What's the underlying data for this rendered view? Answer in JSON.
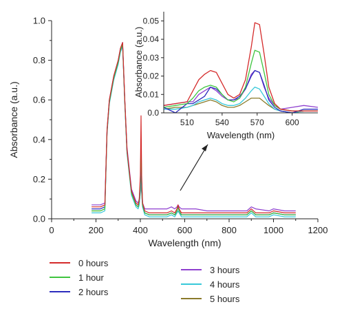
{
  "chart_data": [
    {
      "type": "line",
      "id": "main",
      "xlabel": "Wavelength (nm)",
      "ylabel": "Absorbance (a.u.)",
      "xlim": [
        0,
        1200
      ],
      "ylim": [
        0,
        1.0
      ],
      "xticks": [
        "0",
        "200",
        "400",
        "600",
        "800",
        "1000",
        "1200"
      ],
      "yticks": [
        "0.0",
        "0.2",
        "0.4",
        "0.6",
        "0.8",
        "1.0"
      ],
      "grid": false,
      "legend_position": "bottom",
      "x": [
        180,
        200,
        220,
        240,
        250,
        260,
        280,
        300,
        310,
        320,
        330,
        340,
        360,
        380,
        390,
        395,
        400,
        403,
        406,
        410,
        420,
        440,
        480,
        520,
        540,
        555,
        565,
        570,
        575,
        585,
        600,
        650,
        700,
        800,
        880,
        900,
        920,
        980,
        1000,
        1050,
        1100
      ],
      "series": [
        {
          "name": "0 hours",
          "color": "#d42a2a",
          "values": [
            0.06,
            0.06,
            0.06,
            0.07,
            0.45,
            0.6,
            0.72,
            0.8,
            0.86,
            0.89,
            0.6,
            0.35,
            0.14,
            0.08,
            0.07,
            0.1,
            0.22,
            0.52,
            0.22,
            0.08,
            0.04,
            0.03,
            0.03,
            0.03,
            0.04,
            0.03,
            0.05,
            0.07,
            0.05,
            0.03,
            0.03,
            0.03,
            0.03,
            0.03,
            0.03,
            0.05,
            0.03,
            0.03,
            0.04,
            0.03,
            0.03
          ]
        },
        {
          "name": "1 hour",
          "color": "#3ec43e",
          "values": [
            0.04,
            0.04,
            0.04,
            0.05,
            0.44,
            0.59,
            0.71,
            0.79,
            0.85,
            0.88,
            0.59,
            0.34,
            0.13,
            0.07,
            0.06,
            0.09,
            0.19,
            0.4,
            0.19,
            0.07,
            0.03,
            0.02,
            0.02,
            0.02,
            0.03,
            0.02,
            0.04,
            0.06,
            0.04,
            0.02,
            0.02,
            0.02,
            0.02,
            0.02,
            0.02,
            0.04,
            0.02,
            0.02,
            0.03,
            0.02,
            0.02
          ]
        },
        {
          "name": "2 hours",
          "color": "#2b2bbd",
          "values": [
            0.05,
            0.05,
            0.05,
            0.06,
            0.44,
            0.59,
            0.71,
            0.79,
            0.85,
            0.88,
            0.59,
            0.34,
            0.14,
            0.07,
            0.06,
            0.09,
            0.18,
            0.32,
            0.18,
            0.07,
            0.03,
            0.02,
            0.02,
            0.02,
            0.03,
            0.02,
            0.04,
            0.06,
            0.04,
            0.02,
            0.02,
            0.02,
            0.02,
            0.02,
            0.02,
            0.04,
            0.02,
            0.02,
            0.03,
            0.02,
            0.02
          ]
        },
        {
          "name": "3 hours",
          "color": "#8e3fcf",
          "values": [
            0.07,
            0.07,
            0.07,
            0.08,
            0.45,
            0.6,
            0.72,
            0.8,
            0.86,
            0.89,
            0.6,
            0.36,
            0.15,
            0.09,
            0.08,
            0.1,
            0.18,
            0.28,
            0.18,
            0.08,
            0.05,
            0.05,
            0.05,
            0.05,
            0.06,
            0.05,
            0.06,
            0.07,
            0.06,
            0.05,
            0.05,
            0.05,
            0.04,
            0.04,
            0.04,
            0.06,
            0.05,
            0.04,
            0.05,
            0.04,
            0.04
          ]
        },
        {
          "name": "4 hours",
          "color": "#36c8d9",
          "values": [
            0.03,
            0.03,
            0.03,
            0.04,
            0.43,
            0.58,
            0.7,
            0.78,
            0.84,
            0.87,
            0.58,
            0.33,
            0.12,
            0.06,
            0.05,
            0.07,
            0.14,
            0.22,
            0.14,
            0.06,
            0.02,
            0.01,
            0.01,
            0.01,
            0.02,
            0.01,
            0.03,
            0.04,
            0.03,
            0.01,
            0.01,
            0.01,
            0.01,
            0.01,
            0.01,
            0.03,
            0.01,
            0.01,
            0.02,
            0.01,
            0.01
          ]
        },
        {
          "name": "5 hours",
          "color": "#8a7a2a",
          "values": [
            0.04,
            0.04,
            0.04,
            0.05,
            0.44,
            0.59,
            0.71,
            0.79,
            0.85,
            0.88,
            0.59,
            0.34,
            0.13,
            0.07,
            0.06,
            0.08,
            0.13,
            0.17,
            0.13,
            0.06,
            0.03,
            0.02,
            0.02,
            0.02,
            0.03,
            0.02,
            0.03,
            0.04,
            0.03,
            0.02,
            0.02,
            0.02,
            0.02,
            0.02,
            0.02,
            0.04,
            0.02,
            0.02,
            0.03,
            0.02,
            0.02
          ]
        }
      ]
    },
    {
      "type": "line",
      "id": "inset",
      "xlabel": "Wavelength (nm)",
      "ylabel": "Absorbance (a.u.)",
      "xlim": [
        490,
        622
      ],
      "ylim": [
        0,
        0.055
      ],
      "xticks": [
        "510",
        "540",
        "570",
        "600"
      ],
      "yticks": [
        "0.0",
        "0.01",
        "0.02",
        "0.03",
        "0.04",
        "0.05"
      ],
      "grid": false,
      "x": [
        490,
        500,
        510,
        515,
        520,
        525,
        530,
        535,
        540,
        545,
        550,
        555,
        560,
        565,
        568,
        572,
        576,
        580,
        585,
        590,
        600,
        610,
        622
      ],
      "series": [
        {
          "name": "0 hours",
          "color": "#d42a2a",
          "values": [
            0.004,
            0.005,
            0.006,
            0.012,
            0.018,
            0.021,
            0.023,
            0.022,
            0.016,
            0.01,
            0.008,
            0.01,
            0.018,
            0.036,
            0.049,
            0.048,
            0.032,
            0.014,
            0.005,
            0.002,
            0.001,
            0.001,
            0.001
          ]
        },
        {
          "name": "1 hour",
          "color": "#3ec43e",
          "values": [
            0.003,
            0.004,
            0.005,
            0.008,
            0.012,
            0.014,
            0.015,
            0.014,
            0.01,
            0.007,
            0.006,
            0.008,
            0.014,
            0.027,
            0.034,
            0.033,
            0.022,
            0.01,
            0.004,
            0.002,
            0.001,
            0.001,
            0.001
          ]
        },
        {
          "name": "2 hours",
          "color": "#2b2bbd",
          "values": [
            0.003,
            0.0,
            0.005,
            0.005,
            0.007,
            0.009,
            0.014,
            0.013,
            0.01,
            0.007,
            0.007,
            0.009,
            0.013,
            0.02,
            0.023,
            0.022,
            0.015,
            0.007,
            0.003,
            0.001,
            0.0,
            0.002,
            0.002
          ]
        },
        {
          "name": "3 hours",
          "color": "#8e3fcf",
          "values": [
            0.004,
            0.005,
            0.006,
            0.006,
            0.01,
            0.012,
            0.014,
            0.012,
            0.009,
            0.007,
            0.007,
            0.008,
            0.013,
            0.021,
            0.023,
            0.022,
            0.014,
            0.008,
            0.004,
            0.002,
            0.003,
            0.004,
            0.003
          ]
        },
        {
          "name": "4 hours",
          "color": "#36c8d9",
          "values": [
            0.002,
            0.002,
            0.003,
            0.004,
            0.006,
            0.007,
            0.008,
            0.007,
            0.005,
            0.004,
            0.004,
            0.005,
            0.008,
            0.012,
            0.014,
            0.013,
            0.009,
            0.005,
            0.002,
            0.001,
            0.0,
            0.001,
            0.001
          ]
        },
        {
          "name": "5 hours",
          "color": "#8a7a2a",
          "values": [
            0.002,
            0.003,
            0.003,
            0.004,
            0.005,
            0.006,
            0.007,
            0.006,
            0.004,
            0.003,
            0.003,
            0.004,
            0.006,
            0.008,
            0.008,
            0.008,
            0.006,
            0.004,
            0.002,
            0.001,
            0.0,
            0.001,
            0.001
          ]
        }
      ]
    }
  ]
}
